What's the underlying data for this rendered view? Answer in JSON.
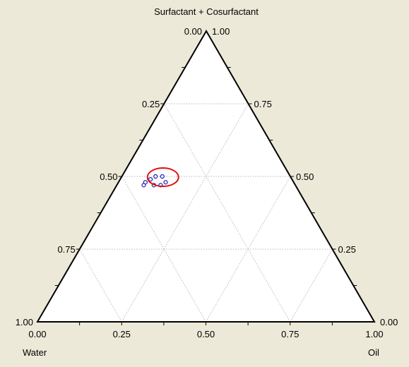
{
  "colors": {
    "background": "#ece9d8",
    "plot_fill": "#ffffff",
    "grid": "#b8b8b8",
    "axis": "#000000",
    "points": "#1f1fb4",
    "highlight": "#e01010"
  },
  "chart_data": {
    "type": "ternary-scatter",
    "axes": {
      "top": {
        "label": "Surfactant + Cosurfactant"
      },
      "left": {
        "label": "Water"
      },
      "right": {
        "label": "Oil"
      }
    },
    "ticks": {
      "values": [
        0,
        0.25,
        0.5,
        0.75,
        1
      ],
      "labels": [
        "0.00",
        "0.25",
        "0.50",
        "0.75",
        "1.00"
      ]
    },
    "grid": true,
    "points": [
      {
        "water": 0.45,
        "oil": 0.08,
        "surfactant_cosurfactant": 0.47
      },
      {
        "water": 0.44,
        "oil": 0.08,
        "surfactant_cosurfactant": 0.48
      },
      {
        "water": 0.42,
        "oil": 0.09,
        "surfactant_cosurfactant": 0.49
      },
      {
        "water": 0.4,
        "oil": 0.1,
        "surfactant_cosurfactant": 0.5
      },
      {
        "water": 0.38,
        "oil": 0.12,
        "surfactant_cosurfactant": 0.5
      },
      {
        "water": 0.42,
        "oil": 0.11,
        "surfactant_cosurfactant": 0.47
      },
      {
        "water": 0.4,
        "oil": 0.13,
        "surfactant_cosurfactant": 0.47
      },
      {
        "water": 0.38,
        "oil": 0.14,
        "surfactant_cosurfactant": 0.48
      }
    ],
    "highlight_ellipse": {
      "water": 0.38,
      "oil": 0.12,
      "surfactant_cosurfactant": 0.5
    }
  }
}
